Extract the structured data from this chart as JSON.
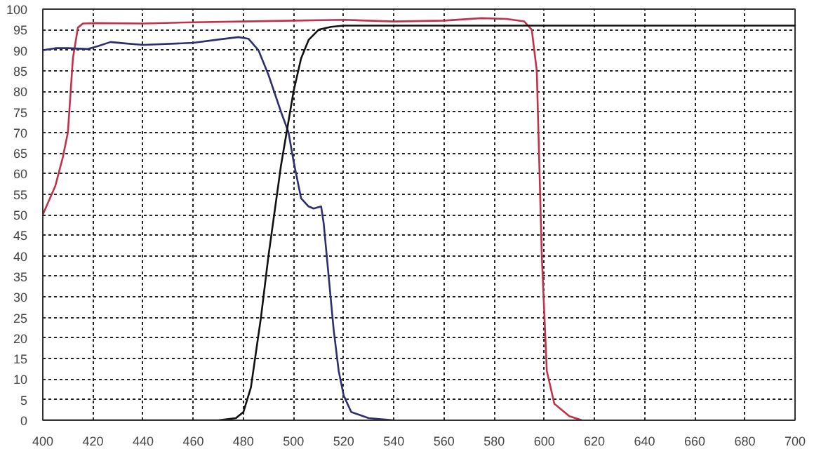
{
  "chart_data": {
    "type": "line",
    "xlim": [
      400,
      700
    ],
    "ylim": [
      0,
      100
    ],
    "xticks": [
      400,
      420,
      440,
      460,
      480,
      500,
      520,
      540,
      560,
      580,
      600,
      620,
      640,
      660,
      680,
      700
    ],
    "yticks": [
      0,
      5,
      10,
      15,
      20,
      25,
      30,
      35,
      40,
      45,
      50,
      55,
      60,
      65,
      70,
      75,
      80,
      85,
      90,
      95,
      100
    ],
    "grid": true,
    "marker": "none",
    "line_style": "solid",
    "series": [
      {
        "color": "#c0324a",
        "x": [
          400,
          405,
          408,
          410,
          412,
          414,
          416,
          420,
          440,
          460,
          480,
          500,
          520,
          540,
          560,
          575,
          585,
          592,
          595,
          597,
          599,
          601,
          604,
          610,
          615
        ],
        "values": [
          50,
          57,
          64,
          70,
          88,
          95.5,
          96.5,
          96.6,
          96.5,
          96.8,
          97,
          97.2,
          97.4,
          97,
          97.2,
          97.8,
          97.6,
          97,
          95,
          85,
          40,
          12,
          4,
          1,
          0
        ]
      },
      {
        "color": "#2e2f6e",
        "x": [
          400,
          405,
          410,
          418,
          422,
          427,
          432,
          440,
          460,
          470,
          478,
          482,
          486,
          490,
          495,
          498,
          500,
          503,
          506,
          508,
          511,
          512,
          514,
          516,
          518,
          520,
          523,
          530,
          540
        ],
        "values": [
          90,
          90.5,
          90.5,
          90.3,
          91,
          92,
          91.7,
          91.3,
          91.8,
          92.6,
          93.2,
          92.8,
          90,
          84,
          75,
          70,
          63,
          54,
          52,
          51.5,
          52,
          48,
          35,
          22,
          12,
          6,
          2,
          0.5,
          0
        ]
      },
      {
        "color": "#111111",
        "x": [
          400,
          470,
          477,
          480,
          483,
          487,
          490,
          495,
          500,
          503,
          506,
          510,
          515,
          520,
          540,
          700
        ],
        "values": [
          0,
          0,
          0.5,
          2,
          8,
          25,
          40,
          62,
          80,
          88,
          92.5,
          95,
          95.7,
          96,
          96,
          96
        ]
      }
    ]
  }
}
